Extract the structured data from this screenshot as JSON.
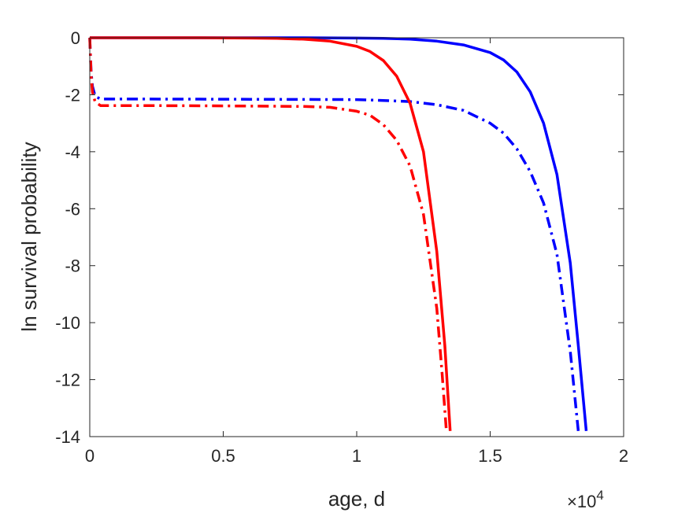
{
  "chart_data": {
    "type": "line",
    "title": "",
    "xlabel": "age, d",
    "ylabel": "ln survival probability",
    "x_exponent_label": "×10",
    "x_exponent_power": "4",
    "xlim": [
      0,
      20000
    ],
    "ylim": [
      -14,
      0
    ],
    "x_ticks": [
      0,
      5000,
      10000,
      15000,
      20000
    ],
    "x_tick_labels": [
      "0",
      "0.5",
      "1",
      "1.5",
      "2"
    ],
    "y_ticks": [
      0,
      -2,
      -4,
      -6,
      -8,
      -10,
      -12,
      -14
    ],
    "y_tick_labels": [
      "0",
      "-2",
      "-4",
      "-6",
      "-8",
      "-10",
      "-12",
      "-14"
    ],
    "grid": false,
    "series": [
      {
        "color": "#0000ff",
        "line_style": "solid",
        "x": [
          0,
          2000,
          4000,
          6000,
          8000,
          10000,
          11000,
          12000,
          13000,
          14000,
          15000,
          15500,
          16000,
          16500,
          17000,
          17500,
          18000,
          18300,
          18600
        ],
        "y": [
          0,
          0,
          0,
          0,
          0,
          -0.01,
          -0.02,
          -0.05,
          -0.12,
          -0.25,
          -0.52,
          -0.78,
          -1.2,
          -1.9,
          -3.0,
          -4.8,
          -7.9,
          -10.8,
          -13.8
        ]
      },
      {
        "color": "#0000ff",
        "line_style": "dash-dot",
        "x": [
          0,
          50,
          100,
          200,
          400,
          2000,
          6000,
          10000,
          11000,
          12000,
          13000,
          14000,
          15000,
          15500,
          16000,
          16500,
          17000,
          17500,
          18000,
          18300
        ],
        "y": [
          0,
          -1.2,
          -1.7,
          -2.05,
          -2.15,
          -2.15,
          -2.16,
          -2.17,
          -2.2,
          -2.24,
          -2.35,
          -2.55,
          -3.0,
          -3.35,
          -3.9,
          -4.7,
          -5.8,
          -7.6,
          -11.0,
          -13.8
        ]
      },
      {
        "color": "#ff0000",
        "line_style": "solid",
        "x": [
          0,
          2000,
          4000,
          6000,
          7000,
          8000,
          9000,
          10000,
          10500,
          11000,
          11500,
          12000,
          12500,
          13000,
          13300,
          13500
        ],
        "y": [
          0,
          0,
          0,
          -0.01,
          -0.02,
          -0.05,
          -0.12,
          -0.3,
          -0.48,
          -0.8,
          -1.35,
          -2.3,
          -4.0,
          -7.5,
          -10.8,
          -13.8
        ]
      },
      {
        "color": "#ff0000",
        "line_style": "dash-dot",
        "x": [
          0,
          50,
          100,
          200,
          400,
          2000,
          5000,
          8000,
          9000,
          10000,
          10500,
          11000,
          11500,
          12000,
          12500,
          13000,
          13200,
          13350
        ],
        "y": [
          0,
          -1.3,
          -1.9,
          -2.25,
          -2.38,
          -2.38,
          -2.39,
          -2.41,
          -2.44,
          -2.58,
          -2.72,
          -3.05,
          -3.6,
          -4.5,
          -6.2,
          -9.5,
          -11.8,
          -13.7
        ]
      }
    ]
  }
}
